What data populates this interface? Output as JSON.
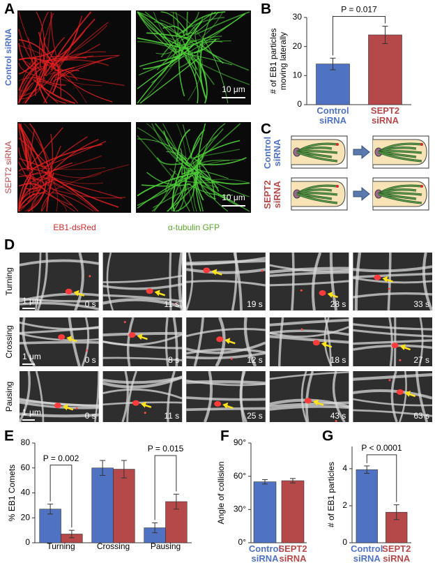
{
  "figure": {
    "panel_letters": [
      "A",
      "B",
      "C",
      "D",
      "E",
      "F",
      "G"
    ],
    "panel_a": {
      "rows": [
        "Control siRNA",
        "SEPT2 siRNA"
      ],
      "channels": [
        "EB1-dsRed",
        "α-tubulin GFP"
      ],
      "scale_bar": "10 μm"
    },
    "panel_c": {
      "rows": [
        "Control siRNA",
        "SEPT2 siRNA"
      ]
    },
    "panel_d": {
      "scale_bar": "1 μm",
      "rows": [
        {
          "label": "Turning",
          "times": [
            "0 s",
            "11 s",
            "19 s",
            "28 s",
            "33 s"
          ]
        },
        {
          "label": "Crossing",
          "times": [
            "0 s",
            "8 s",
            "12 s",
            "18 s",
            "27 s"
          ]
        },
        {
          "label": "Pausing",
          "times": [
            "0 s",
            "11 s",
            "25 s",
            "43 s",
            "63 s"
          ]
        }
      ]
    }
  },
  "chart_data": [
    {
      "type": "bar",
      "ylabel": [
        "# of EB1 particles",
        "moving laterally"
      ],
      "categories": [
        "Control siRNA",
        "SEPT2 siRNA"
      ],
      "values": [
        14,
        24
      ],
      "errors": [
        2,
        3
      ],
      "colors": [
        "#4f72c2",
        "#b54848"
      ],
      "ylim": [
        0,
        30
      ],
      "yticks": [
        0,
        10,
        20,
        30
      ],
      "annotation": "P = 0.017"
    },
    {
      "type": "grouped-bar",
      "ylabel": "% EB1 Comets",
      "categories": [
        "Turning",
        "Crossing",
        "Pausing"
      ],
      "series": [
        {
          "color": "#4f72c2",
          "values": [
            27,
            60,
            12
          ],
          "errors": [
            4,
            6,
            4
          ]
        },
        {
          "color": "#b54848",
          "values": [
            7,
            59,
            33
          ],
          "errors": [
            3,
            7,
            6
          ]
        }
      ],
      "ylim": [
        0,
        80
      ],
      "yticks": [
        0,
        20,
        40,
        60,
        80
      ],
      "annotations": [
        {
          "text": "P = 0.002",
          "category": "Turning"
        },
        {
          "text": "P = 0.015",
          "category": "Pausing"
        }
      ]
    },
    {
      "type": "bar",
      "ylabel": "Angle of collision",
      "categories": [
        "Control siRNA",
        "SEPT2 siRNA"
      ],
      "values": [
        55,
        56
      ],
      "errors": [
        2,
        2
      ],
      "colors": [
        "#4f72c2",
        "#b54848"
      ],
      "ylim": [
        0,
        90
      ],
      "yticks": [
        {
          "value": 0,
          "label": "0°"
        },
        {
          "value": 30,
          "label": "30°"
        },
        {
          "value": 60,
          "label": "60°"
        },
        {
          "value": 90,
          "label": "90°"
        }
      ]
    },
    {
      "type": "bar",
      "ylabel": "# of EB1 particles",
      "categories": [
        "Control siRNA",
        "SEPT2 siRNA"
      ],
      "values": [
        3.95,
        1.65
      ],
      "errors": [
        0.2,
        0.4
      ],
      "colors": [
        "#4f72c2",
        "#b54848"
      ],
      "ylim": [
        0,
        5.2
      ],
      "yticks": [
        0,
        2,
        4
      ],
      "annotation": "P < 0.0001"
    }
  ]
}
